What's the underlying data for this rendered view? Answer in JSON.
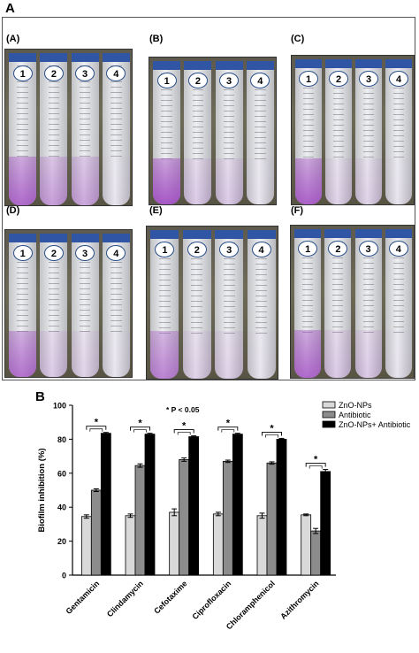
{
  "figure": {
    "panel_a_letter": "A",
    "panel_b_letter": "B"
  },
  "photos": [
    {
      "label": "(A)",
      "tube_numbers": [
        "1",
        "2",
        "3",
        "4"
      ],
      "stain_strength": [
        0.75,
        0.45,
        0.4,
        0.05
      ]
    },
    {
      "label": "(B)",
      "tube_numbers": [
        "1",
        "2",
        "3",
        "4"
      ],
      "stain_strength": [
        0.85,
        0.2,
        0.2,
        0.05
      ]
    },
    {
      "label": "(C)",
      "tube_numbers": [
        "1",
        "2",
        "3",
        "4"
      ],
      "stain_strength": [
        0.8,
        0.15,
        0.15,
        0.05
      ]
    },
    {
      "label": "(D)",
      "tube_numbers": [
        "1",
        "2",
        "3",
        "4"
      ],
      "stain_strength": [
        0.7,
        0.2,
        0.15,
        0.05
      ]
    },
    {
      "label": "(E)",
      "tube_numbers": [
        "1",
        "2",
        "3",
        "4"
      ],
      "stain_strength": [
        0.6,
        0.15,
        0.15,
        0.05
      ]
    },
    {
      "label": "(F)",
      "tube_numbers": [
        "1",
        "2",
        "3",
        "4"
      ],
      "stain_strength": [
        0.75,
        0.2,
        0.2,
        0.05
      ]
    }
  ],
  "colors": {
    "zno": "#d9d9d9",
    "antibiotic": "#8c8c8c",
    "combo": "#000000",
    "tube_cap": "#2f55a4",
    "crystal_violet": "#9b3fbf"
  },
  "chart_data": {
    "type": "bar",
    "title": "",
    "annotation": "* P < 0.05",
    "ylabel": "Biofilm inhibition (%)",
    "xlabel": "",
    "ylim": [
      0,
      100
    ],
    "yticks": [
      0,
      20,
      40,
      60,
      80,
      100
    ],
    "categories": [
      "Gentamicin",
      "Clindamycin",
      "Cefotaxime",
      "Ciprofloxacin",
      "Chloramphenicol",
      "Azithromycin"
    ],
    "legend_position": "top-right",
    "significance_marker": "*",
    "series": [
      {
        "name": "ZnO-NPs",
        "values": [
          34.5,
          35,
          37,
          36,
          35,
          35.5
        ],
        "errors": [
          1,
          1,
          2,
          1,
          1.5,
          0.5
        ]
      },
      {
        "name": "Antibiotic",
        "values": [
          50,
          64.5,
          68,
          67,
          66,
          26
        ],
        "errors": [
          0.8,
          1,
          1,
          0.7,
          0.7,
          1.5
        ]
      },
      {
        "name": "ZnO-NPs+ Antibiotic",
        "values": [
          83.5,
          83,
          81.5,
          83,
          80,
          61
        ],
        "errors": [
          0.5,
          0.5,
          0.5,
          0.5,
          0.5,
          1.2
        ]
      }
    ]
  }
}
